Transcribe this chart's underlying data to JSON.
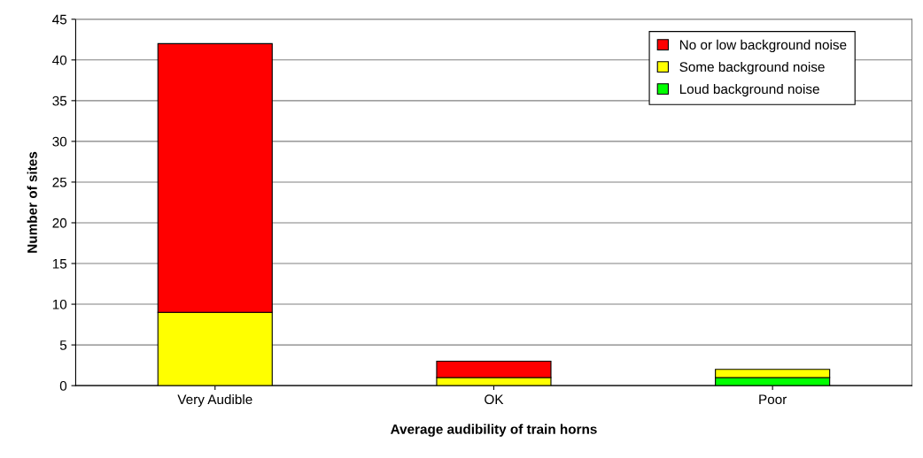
{
  "chart_data": {
    "type": "bar",
    "stacked": true,
    "xlabel": "Average audibility of train horns",
    "ylabel": "Number of sites",
    "categories": [
      "Very Audible",
      "OK",
      "Poor"
    ],
    "series": [
      {
        "name": "Loud background noise",
        "color": "#00ff00",
        "values": [
          0,
          0,
          1
        ]
      },
      {
        "name": "Some background noise",
        "color": "#ffff00",
        "values": [
          9,
          1,
          1
        ]
      },
      {
        "name": "No or low background noise",
        "color": "#ff0000",
        "values": [
          33,
          2,
          0
        ]
      }
    ],
    "ylim": [
      0,
      45
    ],
    "yticks": [
      0,
      5,
      10,
      15,
      20,
      25,
      30,
      35,
      40,
      45
    ],
    "grid": "y",
    "legend": "top right"
  }
}
